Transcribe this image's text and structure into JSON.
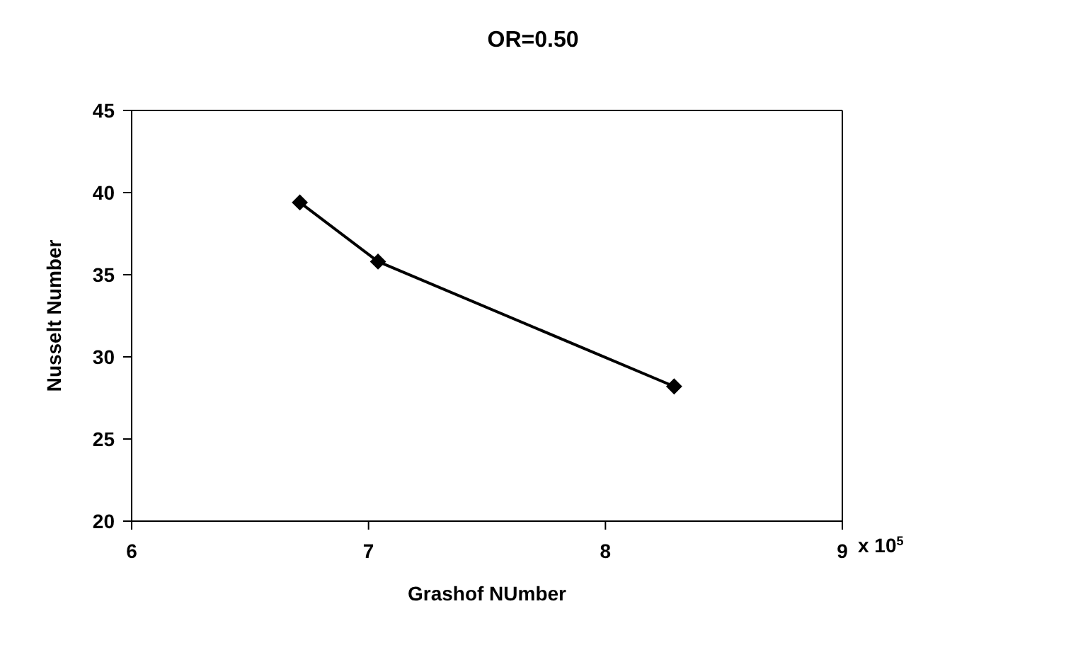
{
  "chart_data": {
    "type": "line",
    "title": "OR=0.50",
    "xlabel": "Grashof NUmber",
    "ylabel": "Nusselt Number",
    "x": [
      6.71,
      7.04,
      8.29
    ],
    "series": [
      {
        "color": "#000000",
        "values": [
          39.4,
          35.8,
          28.2
        ]
      }
    ],
    "xlim": [
      6,
      9
    ],
    "xticks": [
      6,
      7,
      8,
      9
    ],
    "ylim": [
      20,
      45
    ],
    "yticks": [
      20,
      25,
      30,
      35,
      40,
      45
    ],
    "marker": "diamond",
    "line_style": "solid",
    "annotations": [
      "x 10$^{5}$"
    ]
  }
}
